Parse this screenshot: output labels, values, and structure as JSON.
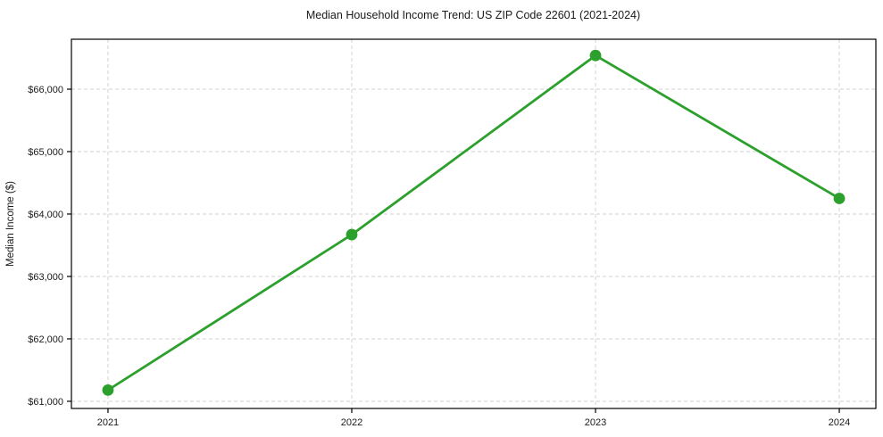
{
  "chart_data": {
    "type": "line",
    "title": "Median Household Income Trend: US ZIP Code 22601 (2021-2024)",
    "xlabel": "",
    "ylabel": "Median Income ($)",
    "x": [
      2021,
      2022,
      2023,
      2024
    ],
    "x_tick_labels": [
      "2021",
      "2022",
      "2023",
      "2024"
    ],
    "series": [
      {
        "name": "Median Household Income",
        "values": [
          61180,
          63670,
          66540,
          64250
        ]
      }
    ],
    "y_ticks": [
      61000,
      62000,
      63000,
      64000,
      65000,
      66000
    ],
    "y_tick_labels": [
      "$61,000",
      "$62,000",
      "$63,000",
      "$64,000",
      "$65,000",
      "$66,000"
    ],
    "xlim": [
      2020.85,
      2024.15
    ],
    "ylim": [
      60885,
      66800
    ],
    "grid": true,
    "grid_style": "dashed",
    "legend": "none",
    "line_color": "#2ca02c",
    "marker": "o",
    "marker_color": "#2ca02c",
    "background_color": "#ffffff",
    "spine_color": "#000000",
    "grid_color": "#d2d2d2",
    "text_color": "#1a1a1a"
  }
}
